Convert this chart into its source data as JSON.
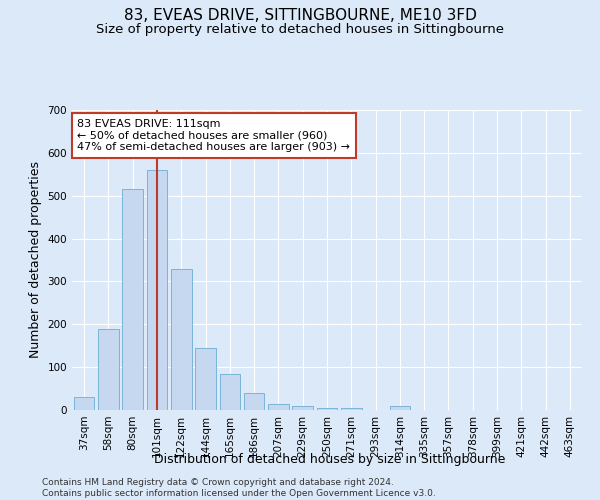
{
  "title": "83, EVEAS DRIVE, SITTINGBOURNE, ME10 3FD",
  "subtitle": "Size of property relative to detached houses in Sittingbourne",
  "xlabel": "Distribution of detached houses by size in Sittingbourne",
  "ylabel": "Number of detached properties",
  "bar_values": [
    30,
    190,
    515,
    560,
    330,
    145,
    85,
    40,
    13,
    10,
    5,
    5,
    0,
    10,
    0,
    0,
    0,
    0,
    0,
    0,
    0
  ],
  "categories": [
    "37sqm",
    "58sqm",
    "80sqm",
    "101sqm",
    "122sqm",
    "144sqm",
    "165sqm",
    "186sqm",
    "207sqm",
    "229sqm",
    "250sqm",
    "271sqm",
    "293sqm",
    "314sqm",
    "335sqm",
    "357sqm",
    "378sqm",
    "399sqm",
    "421sqm",
    "442sqm",
    "463sqm"
  ],
  "bar_color": "#c5d8f0",
  "bar_edge_color": "#6baed6",
  "vline_x_index": 3,
  "vline_color": "#c0392b",
  "annotation_text": "83 EVEAS DRIVE: 111sqm\n← 50% of detached houses are smaller (960)\n47% of semi-detached houses are larger (903) →",
  "annotation_box_facecolor": "#ffffff",
  "annotation_box_edgecolor": "#c0392b",
  "ylim": [
    0,
    700
  ],
  "yticks": [
    0,
    100,
    200,
    300,
    400,
    500,
    600,
    700
  ],
  "footer": "Contains HM Land Registry data © Crown copyright and database right 2024.\nContains public sector information licensed under the Open Government Licence v3.0.",
  "background_color": "#dce9f8",
  "grid_color": "#ffffff",
  "title_fontsize": 11,
  "subtitle_fontsize": 9.5,
  "axis_label_fontsize": 9,
  "tick_fontsize": 7.5,
  "annotation_fontsize": 8,
  "footer_fontsize": 6.5
}
